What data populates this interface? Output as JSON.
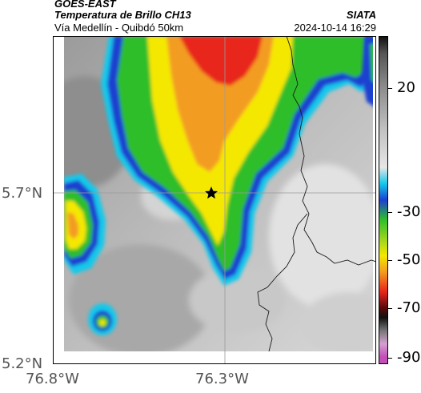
{
  "header": {
    "satellite": "GOES-EAST",
    "product": "Temperatura de Brillo CH13",
    "location": "Vía Medellín - Quibdó 50km",
    "org": "SIATA",
    "timestamp": "2024-10-14 16:29"
  },
  "map": {
    "latitude_labels": [
      "5.7°N",
      "5.2°N"
    ],
    "longitude_labels": [
      "76.8°W",
      "76.3°W"
    ],
    "marker": "star",
    "gridlines": true
  },
  "colorbar": {
    "labels": [
      "20",
      "-30",
      "-50",
      "-70",
      "-90"
    ],
    "colors": {
      "cold_magenta": "#c24fb8",
      "red": "#e8261c",
      "orange": "#f39c20",
      "yellow": "#f5e800",
      "green": "#2fbe2a",
      "blue": "#1e3fd0",
      "cyan": "#13c8ea",
      "gray": "#9a9a9a"
    }
  }
}
